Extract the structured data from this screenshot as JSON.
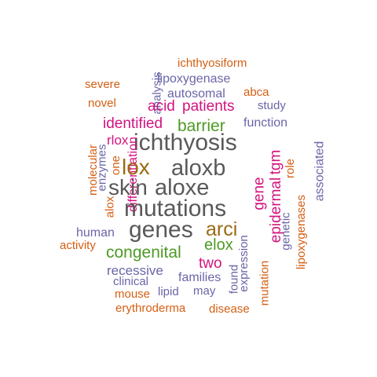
{
  "word_cloud": {
    "colors": {
      "dark_gray": "#595959",
      "olive": "#9a6b12",
      "green": "#4d9a24",
      "magenta": "#d3137f",
      "purple": "#6a66a8",
      "orange": "#d45f13"
    },
    "words": [
      {
        "text": "ichthyosiform",
        "color": "orange",
        "vertical": false
      },
      {
        "text": "lipoxygenase",
        "color": "purple",
        "vertical": false
      },
      {
        "text": "severe",
        "color": "orange",
        "vertical": false
      },
      {
        "text": "analysis",
        "color": "purple",
        "vertical": true
      },
      {
        "text": "autosomal",
        "color": "purple",
        "vertical": false
      },
      {
        "text": "abca",
        "color": "orange",
        "vertical": false
      },
      {
        "text": "novel",
        "color": "orange",
        "vertical": false
      },
      {
        "text": "acid",
        "color": "magenta",
        "vertical": false
      },
      {
        "text": "patients",
        "color": "magenta",
        "vertical": false
      },
      {
        "text": "study",
        "color": "purple",
        "vertical": false
      },
      {
        "text": "identified",
        "color": "magenta",
        "vertical": false
      },
      {
        "text": "barrier",
        "color": "green",
        "vertical": false
      },
      {
        "text": "function",
        "color": "purple",
        "vertical": false
      },
      {
        "text": "rlox",
        "color": "magenta",
        "vertical": false
      },
      {
        "text": "ichthyosis",
        "color": "dark_gray",
        "vertical": false
      },
      {
        "text": "differentiation",
        "color": "magenta",
        "vertical": true
      },
      {
        "text": "one",
        "color": "orange",
        "vertical": true
      },
      {
        "text": "molecular",
        "color": "orange",
        "vertical": true
      },
      {
        "text": "enzymes",
        "color": "purple",
        "vertical": true
      },
      {
        "text": "tgm",
        "color": "magenta",
        "vertical": true
      },
      {
        "text": "role",
        "color": "orange",
        "vertical": true
      },
      {
        "text": "associated",
        "color": "purple",
        "vertical": true
      },
      {
        "text": "lox",
        "color": "olive",
        "vertical": false
      },
      {
        "text": "aloxb",
        "color": "dark_gray",
        "vertical": false
      },
      {
        "text": "skin",
        "color": "dark_gray",
        "vertical": false
      },
      {
        "text": "aloxe",
        "color": "dark_gray",
        "vertical": false
      },
      {
        "text": "gene",
        "color": "magenta",
        "vertical": true
      },
      {
        "text": "epidermal",
        "color": "magenta",
        "vertical": true
      },
      {
        "text": "alox",
        "color": "orange",
        "vertical": true
      },
      {
        "text": "mutations",
        "color": "dark_gray",
        "vertical": false
      },
      {
        "text": "genetic",
        "color": "purple",
        "vertical": true
      },
      {
        "text": "lipoxygenases",
        "color": "orange",
        "vertical": true
      },
      {
        "text": "genes",
        "color": "dark_gray",
        "vertical": false
      },
      {
        "text": "arci",
        "color": "olive",
        "vertical": false
      },
      {
        "text": "human",
        "color": "purple",
        "vertical": false
      },
      {
        "text": "activity",
        "color": "orange",
        "vertical": false
      },
      {
        "text": "elox",
        "color": "green",
        "vertical": false
      },
      {
        "text": "congenital",
        "color": "green",
        "vertical": false
      },
      {
        "text": "two",
        "color": "magenta",
        "vertical": false
      },
      {
        "text": "recessive",
        "color": "purple",
        "vertical": false
      },
      {
        "text": "families",
        "color": "purple",
        "vertical": false
      },
      {
        "text": "clinical",
        "color": "purple",
        "vertical": false
      },
      {
        "text": "found",
        "color": "purple",
        "vertical": true
      },
      {
        "text": "expression",
        "color": "purple",
        "vertical": true
      },
      {
        "text": "mutation",
        "color": "orange",
        "vertical": true
      },
      {
        "text": "mouse",
        "color": "orange",
        "vertical": false
      },
      {
        "text": "lipid",
        "color": "purple",
        "vertical": false
      },
      {
        "text": "may",
        "color": "purple",
        "vertical": false
      },
      {
        "text": "erythroderma",
        "color": "orange",
        "vertical": false
      },
      {
        "text": "disease",
        "color": "orange",
        "vertical": false
      }
    ]
  }
}
